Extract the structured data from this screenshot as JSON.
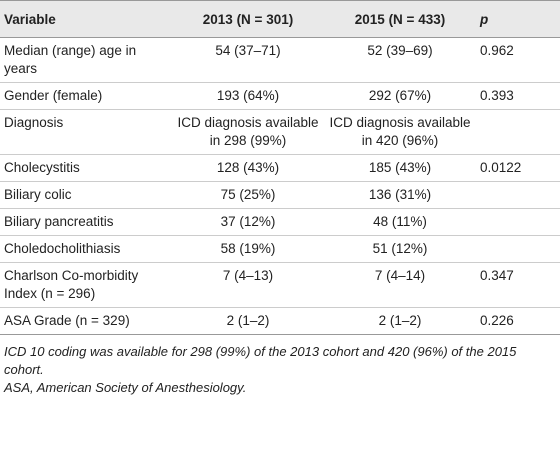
{
  "table": {
    "header": [
      "Variable",
      "2013 (N = 301)",
      "2015 (N = 433)",
      "p"
    ],
    "rows": [
      [
        "Median (range) age in years",
        "54 (37–71)",
        "52 (39–69)",
        "0.962"
      ],
      [
        "Gender (female)",
        "193 (64%)",
        "292 (67%)",
        "0.393"
      ],
      [
        "Diagnosis",
        "ICD diagnosis available in 298 (99%)",
        "ICD diagnosis available in 420 (96%)",
        null
      ],
      [
        "Cholecystitis",
        "128 (43%)",
        "185 (43%)",
        "0.0122"
      ],
      [
        "Biliary colic",
        "75 (25%)",
        "136 (31%)",
        null
      ],
      [
        "Biliary pancreatitis",
        "37 (12%)",
        "48 (11%)",
        null
      ],
      [
        "Choledocholithiasis",
        "58 (19%)",
        "51 (12%)",
        null
      ],
      [
        "Charlson Co-morbidity Index (n = 296)",
        "7 (4–13)",
        "7 (4–14)",
        "0.347"
      ],
      [
        "ASA Grade (n = 329)",
        "2 (1–2)",
        "2 (1–2)",
        "0.226"
      ]
    ]
  },
  "footnotes": [
    "ICD 10 coding was available for 298 (99%) of the 2013 cohort and 420 (96%) of the 2015 cohort.",
    "ASA, American Society of Anesthesiology."
  ]
}
